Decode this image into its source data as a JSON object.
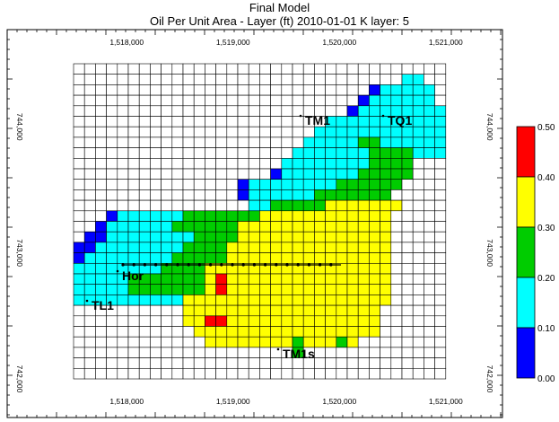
{
  "header": {
    "title": "Final Model",
    "subtitle": "Oil Per Unit Area - Layer (ft) 2010-01-01      K layer: 5"
  },
  "axes": {
    "x_ticks": [
      "1,518,000",
      "1,519,000",
      "1,520,000",
      "1,521,000"
    ],
    "x_values": [
      1518000,
      1519000,
      1520000,
      1521000
    ],
    "y_ticks": [
      "744,000",
      "743,000",
      "742,000"
    ],
    "y_values": [
      744000,
      743000,
      742000
    ]
  },
  "legend": {
    "labels": [
      "0.50",
      "0.40",
      "0.30",
      "0.20",
      "0.10",
      "0.00"
    ],
    "bins": [
      {
        "from": 0.4,
        "to": 0.5,
        "color": "#ff0000"
      },
      {
        "from": 0.3,
        "to": 0.4,
        "color": "#ffff00"
      },
      {
        "from": 0.2,
        "to": 0.3,
        "color": "#00cc00"
      },
      {
        "from": 0.1,
        "to": 0.2,
        "color": "#00ffff"
      },
      {
        "from": 0.0,
        "to": 0.1,
        "color": "#0000ff"
      }
    ]
  },
  "wells": [
    {
      "name": "TM1"
    },
    {
      "name": "TQ1"
    },
    {
      "name": "Hor"
    },
    {
      "name": "TL1"
    },
    {
      "name": "TM1s"
    }
  ],
  "grid": {
    "cols": 34,
    "rows": 30,
    "map": [
      "..................................",
      "..............................00..",
      "...........................B00000.",
      "..........................B000000.",
      ".........................B00000000",
      ".......................00000000000",
      "......................000000000000",
      ".....................00000GG000000",
      "....................0000000GGGG000",
      "...................00000000GGGG...",
      "..................B0000000GGGGG...",
      "...............B00000000GGGGGG....",
      "...............B000000GGGGGGG.....",
      "................00GGGGGYYYYYYY....",
      "...B000000GGGGGGGYYYYYYYYYYYY.....",
      "..B000000GGGGGGYYYYYYYYYYYYYY.....",
      ".BB00000000GGGGYYYYYYYYYYYYYY.....",
      "BB00000000GGGGYYYYYYYYYYYYYYY.....",
      "B00000000GGGGGYYYYYYYYYYYYYYY.....",
      "00000000GGGGYYYYYYYYYYYYYYYYY.....",
      "00000GGGGGGGYRYYYYYYYYYYYYYYY.....",
      "00000GGGGGGGYRYYYYYYYYYYYYYYY.....",
      "0000000000YYYYYYYYYYYYYYYYYYY.....",
      "..........YYYYYYYYYYYYYYYYYY......",
      "..........YYRRYYYYYYYYYYYYYY......",
      "...........YYYYYYYYYYYYYYYYY......",
      "............YYYYYYYYGYYYGY........",
      "....................G.............",
      "..................................",
      ".................................."
    ]
  }
}
